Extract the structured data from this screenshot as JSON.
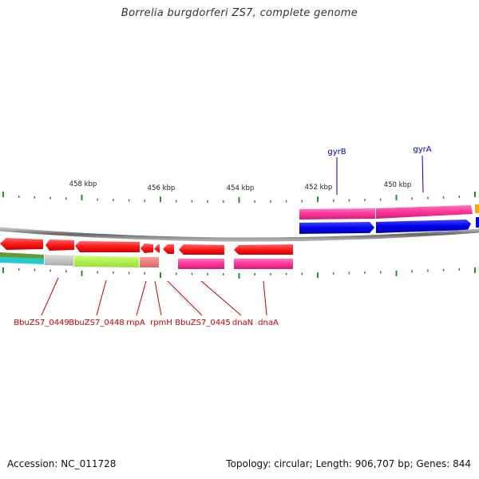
{
  "title": "Borrelia burgdorferi ZS7, complete genome",
  "footer": {
    "accession": "Accession: NC_011728",
    "stats": "Topology: circular; Length: 906,707 bp; Genes: 844"
  },
  "colors": {
    "label_top": "#0000aa",
    "label_bottom": "#cc0000",
    "tick": "#2e8b2e",
    "backbone": "#888888",
    "gene_red": "#ff1a1a",
    "pink": "#ff3399",
    "blue": "#0000ee",
    "gray": "#bbbbbb",
    "lime": "#aaee44",
    "salmon": "#ee7777",
    "cyan": "#22cccc",
    "olive": "#669933",
    "orange": "#ffaa00"
  },
  "scale_labels": [
    "458 kbp",
    "456 kbp",
    "454 kbp",
    "452 kbp",
    "450 kbp"
  ],
  "top_genes": [
    "gyrB",
    "gyrA"
  ],
  "bottom_genes": [
    "BbuZS7_0449",
    "BbuZS7_0448",
    "rnpA",
    "rpmH",
    "BbuZS7_0445",
    "dnaN",
    "dnaA"
  ]
}
